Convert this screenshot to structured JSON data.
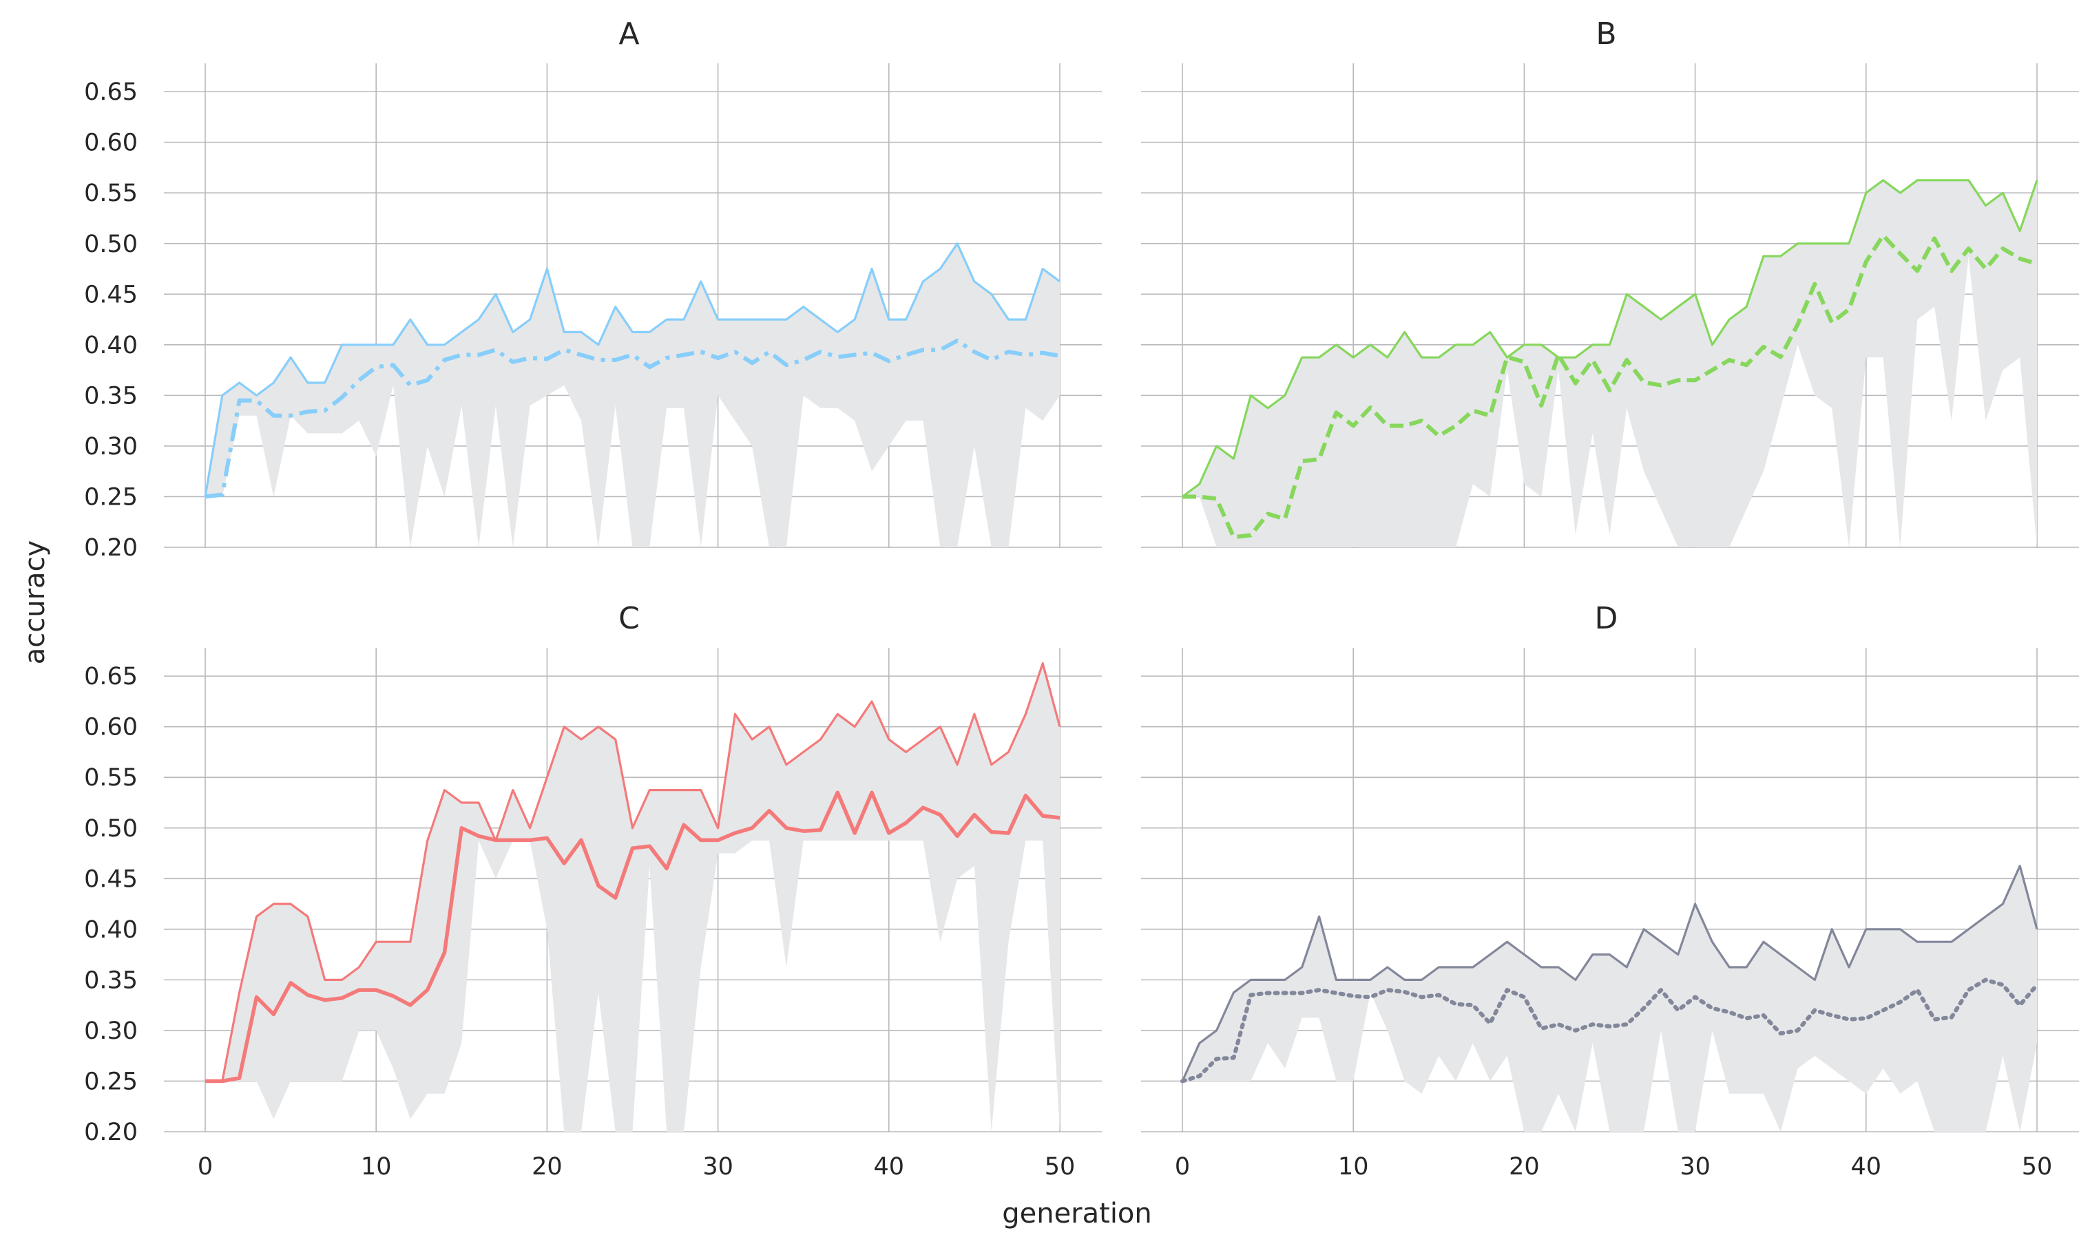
{
  "figure": {
    "xlabel": "generation",
    "ylabel": "accuracy"
  },
  "chart_data": [
    {
      "type": "line",
      "title": "A",
      "xlim": [
        0,
        50
      ],
      "ylim": [
        0.2,
        0.68
      ],
      "xticks": [
        0,
        10,
        20,
        30,
        40,
        50
      ],
      "yticks": [
        0.2,
        0.25,
        0.3,
        0.35,
        0.4,
        0.45,
        0.5,
        0.55,
        0.6,
        0.65
      ],
      "grid": true,
      "x": [
        0,
        1,
        2,
        3,
        4,
        5,
        6,
        7,
        8,
        9,
        10,
        11,
        12,
        13,
        14,
        15,
        16,
        17,
        18,
        19,
        20,
        21,
        22,
        23,
        24,
        25,
        26,
        27,
        28,
        29,
        30,
        31,
        32,
        33,
        34,
        35,
        36,
        37,
        38,
        39,
        40,
        41,
        42,
        43,
        44,
        45,
        46,
        47,
        48,
        49,
        50
      ],
      "series": [
        {
          "role": "max",
          "color": "#87cefa",
          "style": "solid",
          "values": [
            0.25,
            0.35,
            0.3625,
            0.35,
            0.3625,
            0.3875,
            0.3625,
            0.3625,
            0.4,
            0.4,
            0.4,
            0.4,
            0.425,
            0.4,
            0.4,
            0.4125,
            0.425,
            0.45,
            0.4125,
            0.425,
            0.475,
            0.4125,
            0.4125,
            0.4,
            0.4375,
            0.4125,
            0.4125,
            0.425,
            0.425,
            0.4625,
            0.425,
            0.425,
            0.425,
            0.425,
            0.425,
            0.4375,
            0.425,
            0.4125,
            0.425,
            0.475,
            0.425,
            0.425,
            0.4625,
            0.475,
            0.5,
            0.4625,
            0.45,
            0.425,
            0.425,
            0.475,
            0.4625
          ]
        },
        {
          "role": "mean",
          "color": "#87cefa",
          "style": "dashdot",
          "values": [
            0.25,
            0.252,
            0.345,
            0.345,
            0.33,
            0.33,
            0.334,
            0.335,
            0.348,
            0.365,
            0.378,
            0.38,
            0.36,
            0.365,
            0.385,
            0.39,
            0.39,
            0.395,
            0.383,
            0.387,
            0.386,
            0.395,
            0.39,
            0.385,
            0.385,
            0.39,
            0.378,
            0.387,
            0.39,
            0.393,
            0.387,
            0.393,
            0.382,
            0.393,
            0.38,
            0.385,
            0.393,
            0.388,
            0.39,
            0.392,
            0.384,
            0.39,
            0.395,
            0.395,
            0.404,
            0.393,
            0.385,
            0.393,
            0.39,
            0.392,
            0.389
          ]
        },
        {
          "role": "min",
          "color": "#e6e7e9",
          "style": "band",
          "values": [
            0.25,
            0.25,
            0.33,
            0.33,
            0.25,
            0.33,
            0.3125,
            0.3125,
            0.3125,
            0.325,
            0.29,
            0.36,
            0.2,
            0.3,
            0.25,
            0.34,
            0.2,
            0.34,
            0.2,
            0.34,
            0.35,
            0.36,
            0.325,
            0.2,
            0.34,
            0.2,
            0.2,
            0.3375,
            0.3375,
            0.2,
            0.35,
            0.325,
            0.3,
            0.2,
            0.2,
            0.35,
            0.3375,
            0.3375,
            0.325,
            0.275,
            0.3,
            0.325,
            0.325,
            0.2,
            0.2,
            0.3,
            0.2,
            0.2,
            0.3375,
            0.325,
            0.35
          ]
        }
      ]
    },
    {
      "type": "line",
      "title": "B",
      "xlim": [
        0,
        50
      ],
      "ylim": [
        0.2,
        0.68
      ],
      "xticks": [
        0,
        10,
        20,
        30,
        40,
        50
      ],
      "yticks": [
        0.2,
        0.25,
        0.3,
        0.35,
        0.4,
        0.45,
        0.5,
        0.55,
        0.6,
        0.65
      ],
      "grid": true,
      "x": [
        0,
        1,
        2,
        3,
        4,
        5,
        6,
        7,
        8,
        9,
        10,
        11,
        12,
        13,
        14,
        15,
        16,
        17,
        18,
        19,
        20,
        21,
        22,
        23,
        24,
        25,
        26,
        27,
        28,
        29,
        30,
        31,
        32,
        33,
        34,
        35,
        36,
        37,
        38,
        39,
        40,
        41,
        42,
        43,
        44,
        45,
        46,
        47,
        48,
        49,
        50
      ],
      "series": [
        {
          "role": "max",
          "color": "#86d75c",
          "style": "solid",
          "values": [
            0.25,
            0.2625,
            0.3,
            0.2875,
            0.35,
            0.3375,
            0.35,
            0.3875,
            0.3875,
            0.4,
            0.3875,
            0.4,
            0.3875,
            0.4125,
            0.3875,
            0.3875,
            0.4,
            0.4,
            0.4125,
            0.3875,
            0.4,
            0.4,
            0.3875,
            0.3875,
            0.4,
            0.4,
            0.45,
            0.4375,
            0.425,
            0.4375,
            0.45,
            0.4,
            0.425,
            0.4375,
            0.4875,
            0.4875,
            0.5,
            0.5,
            0.5,
            0.5,
            0.55,
            0.5625,
            0.55,
            0.5625,
            0.5625,
            0.5625,
            0.5625,
            0.5375,
            0.55,
            0.5125,
            0.5625
          ]
        },
        {
          "role": "mean",
          "color": "#86d75c",
          "style": "dashed",
          "values": [
            0.25,
            0.25,
            0.248,
            0.21,
            0.212,
            0.233,
            0.228,
            0.285,
            0.287,
            0.333,
            0.32,
            0.338,
            0.32,
            0.32,
            0.325,
            0.31,
            0.32,
            0.335,
            0.33,
            0.388,
            0.383,
            0.34,
            0.39,
            0.362,
            0.385,
            0.355,
            0.385,
            0.363,
            0.36,
            0.365,
            0.365,
            0.375,
            0.385,
            0.38,
            0.398,
            0.388,
            0.42,
            0.46,
            0.422,
            0.435,
            0.482,
            0.508,
            0.49,
            0.473,
            0.505,
            0.473,
            0.495,
            0.475,
            0.495,
            0.485,
            0.48
          ]
        },
        {
          "role": "min",
          "color": "#e6e7e9",
          "style": "band",
          "values": [
            0.25,
            0.25,
            0.2,
            0.2,
            0.2,
            0.2,
            0.2,
            0.2,
            0.2,
            0.2,
            0.2,
            0.2,
            0.2,
            0.2,
            0.2,
            0.2,
            0.2,
            0.2625,
            0.25,
            0.375,
            0.2625,
            0.25,
            0.375,
            0.2125,
            0.3125,
            0.2125,
            0.3375,
            0.275,
            0.2375,
            0.2,
            0.2,
            0.2,
            0.2,
            0.2375,
            0.275,
            0.3375,
            0.4,
            0.35,
            0.3375,
            0.2,
            0.3875,
            0.3875,
            0.2,
            0.425,
            0.4375,
            0.325,
            0.4875,
            0.325,
            0.375,
            0.3875,
            0.2
          ]
        }
      ]
    },
    {
      "type": "line",
      "title": "C",
      "xlim": [
        0,
        50
      ],
      "ylim": [
        0.2,
        0.68
      ],
      "xticks": [
        0,
        10,
        20,
        30,
        40,
        50
      ],
      "yticks": [
        0.2,
        0.25,
        0.3,
        0.35,
        0.4,
        0.45,
        0.5,
        0.55,
        0.6,
        0.65
      ],
      "grid": true,
      "x": [
        0,
        1,
        2,
        3,
        4,
        5,
        6,
        7,
        8,
        9,
        10,
        11,
        12,
        13,
        14,
        15,
        16,
        17,
        18,
        19,
        20,
        21,
        22,
        23,
        24,
        25,
        26,
        27,
        28,
        29,
        30,
        31,
        32,
        33,
        34,
        35,
        36,
        37,
        38,
        39,
        40,
        41,
        42,
        43,
        44,
        45,
        46,
        47,
        48,
        49,
        50
      ],
      "series": [
        {
          "role": "max",
          "color": "#f47a7a",
          "style": "solid",
          "values": [
            0.25,
            0.25,
            0.3375,
            0.4125,
            0.425,
            0.425,
            0.4125,
            0.35,
            0.35,
            0.3625,
            0.3875,
            0.3875,
            0.3875,
            0.4875,
            0.5375,
            0.525,
            0.525,
            0.4875,
            0.5375,
            0.5,
            0.55,
            0.6,
            0.5875,
            0.6,
            0.5875,
            0.5,
            0.5375,
            0.5375,
            0.5375,
            0.5375,
            0.5,
            0.6125,
            0.5875,
            0.6,
            0.5625,
            0.575,
            0.5875,
            0.6125,
            0.6,
            0.625,
            0.5875,
            0.575,
            0.5875,
            0.6,
            0.5625,
            0.6125,
            0.5625,
            0.575,
            0.6125,
            0.6625,
            0.6
          ]
        },
        {
          "role": "mean",
          "color": "#f47a7a",
          "style": "solid-thick",
          "values": [
            0.25,
            0.25,
            0.253,
            0.333,
            0.316,
            0.347,
            0.335,
            0.33,
            0.332,
            0.34,
            0.34,
            0.334,
            0.325,
            0.34,
            0.377,
            0.5,
            0.492,
            0.488,
            0.488,
            0.488,
            0.49,
            0.465,
            0.488,
            0.443,
            0.431,
            0.48,
            0.482,
            0.46,
            0.503,
            0.488,
            0.488,
            0.495,
            0.5,
            0.517,
            0.5,
            0.497,
            0.498,
            0.535,
            0.495,
            0.535,
            0.495,
            0.505,
            0.52,
            0.513,
            0.492,
            0.513,
            0.496,
            0.495,
            0.532,
            0.512,
            0.51
          ]
        },
        {
          "role": "min",
          "color": "#e6e7e9",
          "style": "band",
          "values": [
            0.25,
            0.25,
            0.25,
            0.25,
            0.2125,
            0.25,
            0.25,
            0.25,
            0.25,
            0.3,
            0.3,
            0.2625,
            0.2125,
            0.2375,
            0.2375,
            0.2875,
            0.4875,
            0.45,
            0.4875,
            0.4875,
            0.4,
            0.2,
            0.2,
            0.3375,
            0.2,
            0.2,
            0.4625,
            0.2,
            0.2,
            0.3625,
            0.475,
            0.475,
            0.4875,
            0.4875,
            0.3625,
            0.4875,
            0.4875,
            0.4875,
            0.4875,
            0.4875,
            0.4875,
            0.4875,
            0.4875,
            0.3875,
            0.45,
            0.4625,
            0.2,
            0.3875,
            0.4875,
            0.4875,
            0.2
          ]
        }
      ]
    },
    {
      "type": "line",
      "title": "D",
      "xlim": [
        0,
        50
      ],
      "ylim": [
        0.2,
        0.68
      ],
      "xticks": [
        0,
        10,
        20,
        30,
        40,
        50
      ],
      "yticks": [
        0.2,
        0.25,
        0.3,
        0.35,
        0.4,
        0.45,
        0.5,
        0.55,
        0.6,
        0.65
      ],
      "grid": true,
      "x": [
        0,
        1,
        2,
        3,
        4,
        5,
        6,
        7,
        8,
        9,
        10,
        11,
        12,
        13,
        14,
        15,
        16,
        17,
        18,
        19,
        20,
        21,
        22,
        23,
        24,
        25,
        26,
        27,
        28,
        29,
        30,
        31,
        32,
        33,
        34,
        35,
        36,
        37,
        38,
        39,
        40,
        41,
        42,
        43,
        44,
        45,
        46,
        47,
        48,
        49,
        50
      ],
      "series": [
        {
          "role": "max",
          "color": "#82879a",
          "style": "solid",
          "values": [
            0.25,
            0.2875,
            0.3,
            0.3375,
            0.35,
            0.35,
            0.35,
            0.3625,
            0.4125,
            0.35,
            0.35,
            0.35,
            0.3625,
            0.35,
            0.35,
            0.3625,
            0.3625,
            0.3625,
            0.375,
            0.3875,
            0.375,
            0.3625,
            0.3625,
            0.35,
            0.375,
            0.375,
            0.3625,
            0.4,
            0.3875,
            0.375,
            0.425,
            0.3875,
            0.3625,
            0.3625,
            0.3875,
            0.375,
            0.3625,
            0.35,
            0.4,
            0.3625,
            0.4,
            0.4,
            0.4,
            0.3875,
            0.3875,
            0.3875,
            0.4,
            0.4125,
            0.425,
            0.4625,
            0.4
          ]
        },
        {
          "role": "mean",
          "color": "#82879a",
          "style": "dotted",
          "values": [
            0.25,
            0.255,
            0.272,
            0.273,
            0.335,
            0.337,
            0.337,
            0.337,
            0.34,
            0.337,
            0.334,
            0.333,
            0.34,
            0.338,
            0.333,
            0.335,
            0.326,
            0.325,
            0.307,
            0.34,
            0.333,
            0.302,
            0.306,
            0.3,
            0.306,
            0.304,
            0.306,
            0.322,
            0.34,
            0.32,
            0.333,
            0.322,
            0.318,
            0.312,
            0.315,
            0.297,
            0.3,
            0.32,
            0.315,
            0.311,
            0.312,
            0.32,
            0.328,
            0.34,
            0.311,
            0.313,
            0.34,
            0.35,
            0.345,
            0.325,
            0.345
          ]
        },
        {
          "role": "min",
          "color": "#e6e7e9",
          "style": "band",
          "values": [
            0.25,
            0.25,
            0.25,
            0.25,
            0.25,
            0.2875,
            0.2625,
            0.3125,
            0.3125,
            0.25,
            0.25,
            0.3375,
            0.3,
            0.25,
            0.2375,
            0.275,
            0.25,
            0.2875,
            0.25,
            0.275,
            0.2,
            0.2,
            0.2375,
            0.2,
            0.2875,
            0.2,
            0.2,
            0.2,
            0.3,
            0.2,
            0.2,
            0.3,
            0.2375,
            0.2375,
            0.2375,
            0.2,
            0.2625,
            0.275,
            0.2625,
            0.25,
            0.2375,
            0.2625,
            0.2375,
            0.25,
            0.2,
            0.2,
            0.2,
            0.2,
            0.275,
            0.2,
            0.2875
          ]
        }
      ]
    }
  ]
}
